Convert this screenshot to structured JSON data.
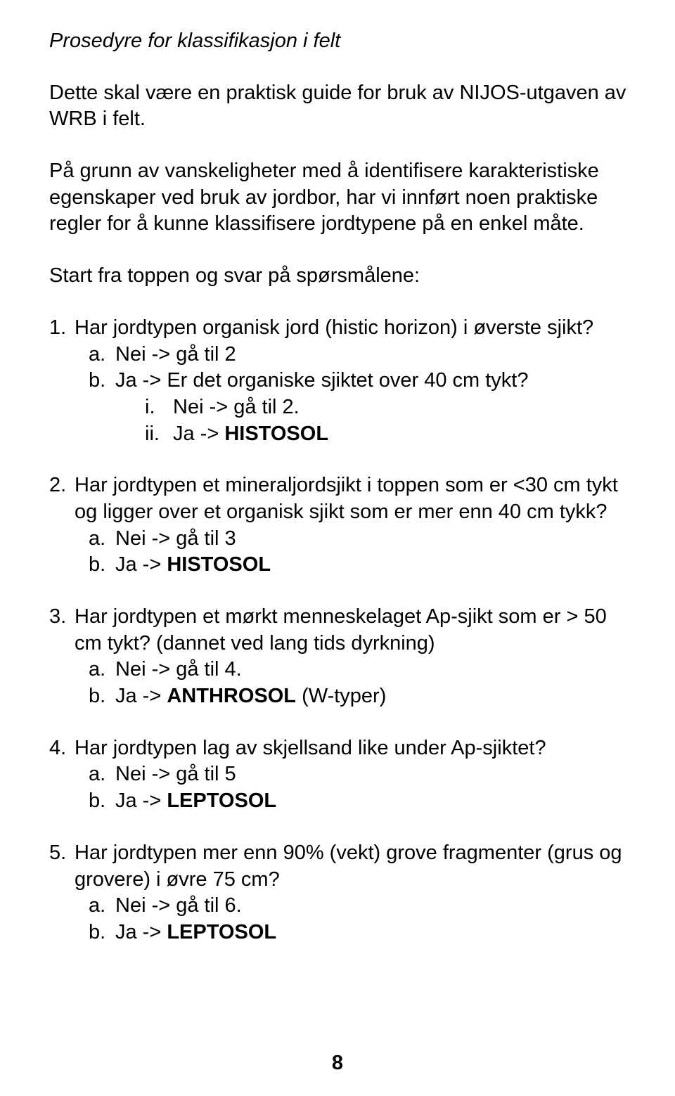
{
  "title": "Prosedyre for klassifikasjon i felt",
  "intro1": "Dette skal være en praktisk guide for bruk av NIJOS-utgaven av WRB i felt.",
  "intro2": "På grunn av vanskeligheter med å identifisere karakteristiske egenskaper ved bruk av jordbor, har vi innført noen praktiske regler for å kunne klassifisere jordtypene på en enkel måte.",
  "intro3": "Start fra toppen og svar på spørsmålene:",
  "q1": {
    "num": "1.",
    "text": "Har jordtypen organisk jord (histic horizon) i øverste sjikt?",
    "a": {
      "label": "a.",
      "text": "Nei -> gå til 2"
    },
    "b": {
      "label": "b.",
      "text": "Ja -> Er det organiske sjiktet over 40 cm tykt?",
      "i": {
        "label": "i.",
        "text": "Nei -> gå til 2."
      },
      "ii": {
        "label": "ii.",
        "pre": "Ja -> ",
        "bold": "HISTOSOL"
      }
    }
  },
  "q2": {
    "num": "2.",
    "text": "Har jordtypen et mineraljordsjikt i toppen som er <30 cm tykt og ligger over et organisk sjikt som er mer enn 40 cm tykk?",
    "a": {
      "label": "a.",
      "text": "Nei -> gå til 3"
    },
    "b": {
      "label": "b.",
      "pre": "Ja -> ",
      "bold": "HISTOSOL"
    }
  },
  "q3": {
    "num": "3.",
    "text": "Har jordtypen et mørkt menneskelaget Ap-sjikt som er > 50 cm tykt? (dannet ved lang tids dyrkning)",
    "a": {
      "label": "a.",
      "text": "Nei -> gå til 4."
    },
    "b": {
      "label": "b.",
      "pre": "Ja -> ",
      "bold": "ANTHROSOL",
      "post": " (W-typer)"
    }
  },
  "q4": {
    "num": "4.",
    "text": "Har jordtypen lag av skjellsand like under Ap-sjiktet?",
    "a": {
      "label": "a.",
      "text": "Nei -> gå til 5"
    },
    "b": {
      "label": "b.",
      "pre": "Ja -> ",
      "bold": "LEPTOSOL"
    }
  },
  "q5": {
    "num": "5.",
    "text": "Har jordtypen mer enn 90% (vekt) grove fragmenter (grus og grovere) i øvre 75 cm?",
    "a": {
      "label": "a.",
      "text": "Nei -> gå til 6."
    },
    "b": {
      "label": "b.",
      "pre": "Ja -> ",
      "bold": "LEPTOSOL"
    }
  },
  "pagenum": "8"
}
